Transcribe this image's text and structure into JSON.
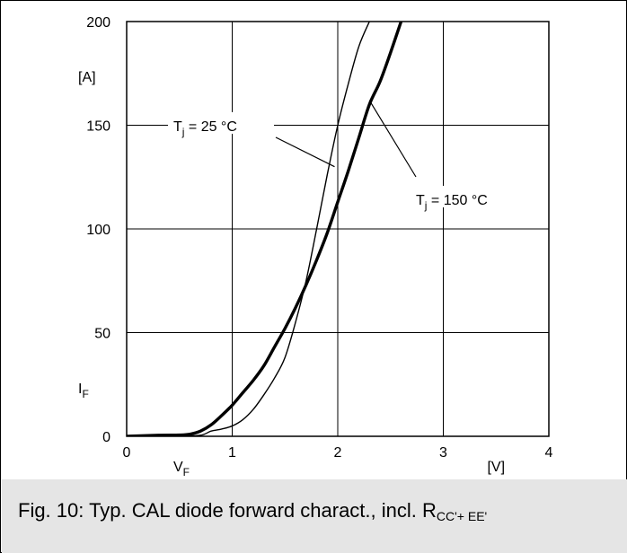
{
  "chart_data": {
    "type": "line",
    "xlabel": "V",
    "xlabel_sub": "F",
    "ylabel": "I",
    "ylabel_sub": "F",
    "x_unit": "[V]",
    "y_unit": "[A]",
    "xlim": [
      0,
      4
    ],
    "ylim": [
      0,
      200
    ],
    "x_ticks": [
      "0",
      "1",
      "2",
      "3",
      "4"
    ],
    "y_ticks": [
      "0",
      "50",
      "100",
      "150",
      "200"
    ],
    "grid": true,
    "series": [
      {
        "name": "T_j = 25 °C",
        "line": "thin",
        "x": [
          0,
          0.5,
          0.7,
          0.8,
          0.9,
          1.0,
          1.1,
          1.2,
          1.3,
          1.4,
          1.5,
          1.6,
          1.7,
          1.8,
          1.9,
          2.0,
          2.1,
          2.2,
          2.3
        ],
        "y": [
          0,
          0.2,
          0.5,
          2.5,
          3.5,
          5,
          8,
          13,
          20,
          28,
          38,
          55,
          75,
          100,
          126,
          150,
          170,
          188,
          200
        ]
      },
      {
        "name": "T_j = 150 °C",
        "line": "thick",
        "x": [
          0,
          0.3,
          0.5,
          0.6,
          0.7,
          0.8,
          0.9,
          1.0,
          1.1,
          1.2,
          1.3,
          1.4,
          1.5,
          1.6,
          1.7,
          1.8,
          1.9,
          2.0,
          2.1,
          2.2,
          2.3,
          2.4,
          2.5,
          2.6
        ],
        "y": [
          0,
          0.5,
          0.6,
          1,
          2.5,
          5.5,
          10,
          15,
          21,
          27,
          34,
          43,
          52,
          62,
          73,
          85,
          98,
          113,
          128,
          144,
          160,
          171,
          185,
          200
        ]
      }
    ],
    "annotations": [
      {
        "text": "T",
        "sub": "j",
        "rest": " = 25 °C",
        "series": 0
      },
      {
        "text": "T",
        "sub": "j",
        "rest": " = 150 °C",
        "series": 1
      }
    ]
  },
  "caption": {
    "main": "Fig. 10: Typ. CAL diode forward charact., incl. R",
    "sub": "CC'+ EE'"
  }
}
